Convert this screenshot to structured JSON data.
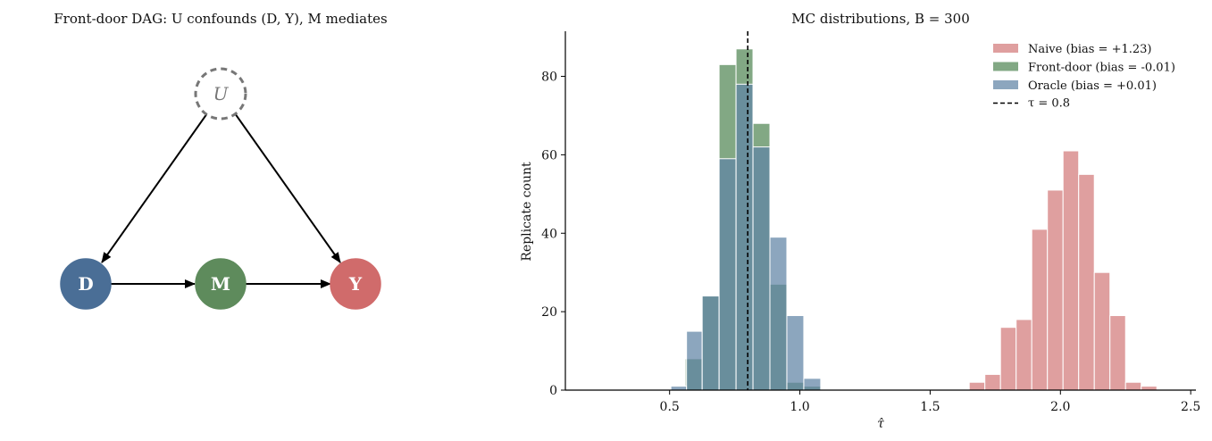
{
  "colors": {
    "naive": "#d98e8e",
    "frontdoor": "#5f8f62",
    "oracle": "#5f84a5",
    "node_D": "#4a6e96",
    "node_M": "#5e8b5c",
    "node_Y": "#d06b6b",
    "node_U_stroke": "#777777"
  },
  "dag": {
    "title": "Front-door DAG: U confounds (D, Y), M mediates",
    "nodes": [
      {
        "id": "U",
        "label": "U",
        "style": "dashed"
      },
      {
        "id": "D",
        "label": "D",
        "style": "filled"
      },
      {
        "id": "M",
        "label": "M",
        "style": "filled"
      },
      {
        "id": "Y",
        "label": "Y",
        "style": "filled"
      }
    ],
    "edges": [
      {
        "from": "U",
        "to": "D"
      },
      {
        "from": "U",
        "to": "Y"
      },
      {
        "from": "D",
        "to": "M"
      },
      {
        "from": "M",
        "to": "Y"
      }
    ]
  },
  "chart_data": {
    "type": "bar",
    "title": "MC distributions, B = 300",
    "xlabel": "τ̂",
    "ylabel": "Replicate count",
    "xlim": [
      0.1,
      2.52
    ],
    "ylim": [
      0,
      91.5
    ],
    "xticks": [
      "0.5",
      "1.0",
      "1.5",
      "2.0",
      "2.5"
    ],
    "yticks": [
      "0",
      "20",
      "40",
      "60",
      "80"
    ],
    "legend_position": "top-right",
    "reference_line": {
      "value": 0.8,
      "label": "τ = 0.8",
      "style": "dashed"
    },
    "series": [
      {
        "name": "Naive (bias = +1.23)",
        "color_key": "naive",
        "bins": [
          {
            "x0": 1.65,
            "x1": 1.71,
            "count": 2
          },
          {
            "x0": 1.71,
            "x1": 1.77,
            "count": 4
          },
          {
            "x0": 1.77,
            "x1": 1.83,
            "count": 16
          },
          {
            "x0": 1.83,
            "x1": 1.89,
            "count": 18
          },
          {
            "x0": 1.89,
            "x1": 1.95,
            "count": 41
          },
          {
            "x0": 1.95,
            "x1": 2.01,
            "count": 51
          },
          {
            "x0": 2.01,
            "x1": 2.07,
            "count": 61
          },
          {
            "x0": 2.07,
            "x1": 2.13,
            "count": 55
          },
          {
            "x0": 2.13,
            "x1": 2.19,
            "count": 30
          },
          {
            "x0": 2.19,
            "x1": 2.25,
            "count": 19
          },
          {
            "x0": 2.25,
            "x1": 2.31,
            "count": 2
          },
          {
            "x0": 2.31,
            "x1": 2.37,
            "count": 1
          }
        ]
      },
      {
        "name": "Front-door (bias = -0.01)",
        "color_key": "frontdoor",
        "bins": [
          {
            "x0": 0.56,
            "x1": 0.625,
            "count": 8
          },
          {
            "x0": 0.625,
            "x1": 0.69,
            "count": 24
          },
          {
            "x0": 0.69,
            "x1": 0.755,
            "count": 83
          },
          {
            "x0": 0.755,
            "x1": 0.82,
            "count": 87
          },
          {
            "x0": 0.82,
            "x1": 0.885,
            "count": 68
          },
          {
            "x0": 0.885,
            "x1": 0.95,
            "count": 27
          },
          {
            "x0": 0.95,
            "x1": 1.015,
            "count": 2
          },
          {
            "x0": 1.015,
            "x1": 1.08,
            "count": 1
          }
        ]
      },
      {
        "name": "Oracle (bias = +0.01)",
        "color_key": "oracle",
        "bins": [
          {
            "x0": 0.505,
            "x1": 0.565,
            "count": 1
          },
          {
            "x0": 0.565,
            "x1": 0.625,
            "count": 15
          },
          {
            "x0": 0.625,
            "x1": 0.69,
            "count": 24
          },
          {
            "x0": 0.69,
            "x1": 0.755,
            "count": 59
          },
          {
            "x0": 0.755,
            "x1": 0.82,
            "count": 78
          },
          {
            "x0": 0.82,
            "x1": 0.885,
            "count": 62
          },
          {
            "x0": 0.885,
            "x1": 0.95,
            "count": 39
          },
          {
            "x0": 0.95,
            "x1": 1.015,
            "count": 19
          },
          {
            "x0": 1.015,
            "x1": 1.08,
            "count": 3
          }
        ]
      }
    ]
  }
}
